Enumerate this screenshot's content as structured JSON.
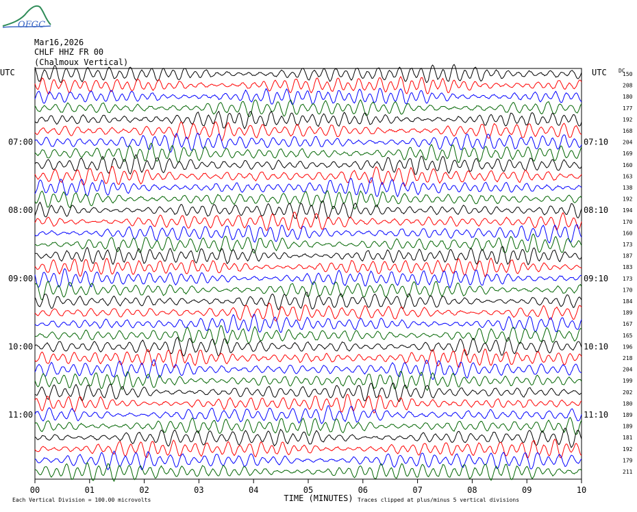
{
  "header": {
    "logo_text": "OFGC",
    "date": "Mar16,2026",
    "station": "CHLF HHZ FR 00",
    "location": "(Chalmoux Vertical)"
  },
  "axis": {
    "utc_label_left": "UTC",
    "utc_label_right": "UTC",
    "dc_label": "DC",
    "xlabel": "TIME (MINUTES)",
    "x_ticks": [
      "00",
      "01",
      "02",
      "03",
      "04",
      "05",
      "06",
      "07",
      "08",
      "09",
      "10"
    ],
    "left_time_labels": [
      {
        "text": "07:00",
        "row": 6
      },
      {
        "text": "08:00",
        "row": 12
      },
      {
        "text": "09:00",
        "row": 18
      },
      {
        "text": "10:00",
        "row": 24
      },
      {
        "text": "11:00",
        "row": 30
      }
    ],
    "right_time_labels": [
      {
        "text": "07:10",
        "row": 6
      },
      {
        "text": "08:10",
        "row": 12
      },
      {
        "text": "09:10",
        "row": 18
      },
      {
        "text": "10:10",
        "row": 24
      },
      {
        "text": "11:10",
        "row": 30
      }
    ]
  },
  "footer": {
    "scale_note": "Each Vertical Division = 100.00 microvolts",
    "clip_note": "Traces clipped at plus/minus 5 vertical divisions"
  },
  "chart_data": {
    "type": "line",
    "title": "",
    "xlabel": "TIME (MINUTES)",
    "ylabel": "",
    "xlim": [
      0,
      10
    ],
    "row_minutes": 10,
    "trace_colors": [
      "#000000",
      "#ff0000",
      "#0000ff",
      "#006400"
    ],
    "dc_offsets": [
      150,
      208,
      180,
      177,
      192,
      168,
      204,
      169,
      160,
      163,
      138,
      192,
      194,
      170,
      160,
      173,
      187,
      183,
      173,
      170,
      184,
      189,
      167,
      165,
      196,
      218,
      204,
      199,
      202,
      180,
      189,
      189,
      181,
      192,
      179,
      211
    ]
  }
}
